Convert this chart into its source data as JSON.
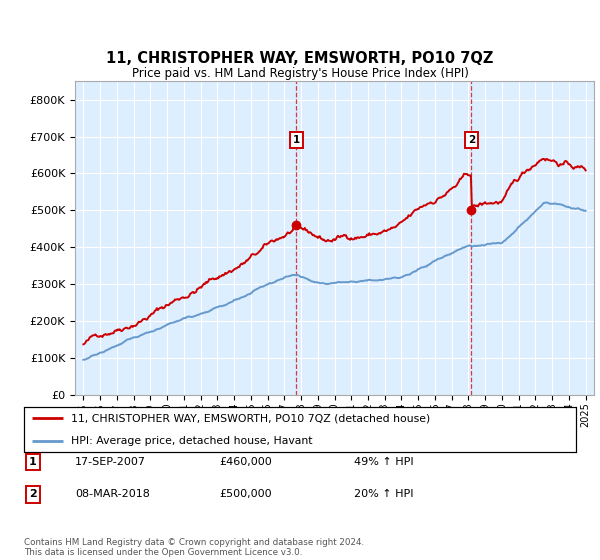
{
  "title": "11, CHRISTOPHER WAY, EMSWORTH, PO10 7QZ",
  "subtitle": "Price paid vs. HM Land Registry's House Price Index (HPI)",
  "legend_line1": "11, CHRISTOPHER WAY, EMSWORTH, PO10 7QZ (detached house)",
  "legend_line2": "HPI: Average price, detached house, Havant",
  "annotation1_label": "1",
  "annotation1_date": "17-SEP-2007",
  "annotation1_price": "£460,000",
  "annotation1_hpi": "49% ↑ HPI",
  "annotation2_label": "2",
  "annotation2_date": "08-MAR-2018",
  "annotation2_price": "£500,000",
  "annotation2_hpi": "20% ↑ HPI",
  "footer": "Contains HM Land Registry data © Crown copyright and database right 2024.\nThis data is licensed under the Open Government Licence v3.0.",
  "red_color": "#cc0000",
  "blue_color": "#6699cc",
  "background_color": "#ddeeff",
  "ylim": [
    0,
    850000
  ],
  "yticks": [
    0,
    100000,
    200000,
    300000,
    400000,
    500000,
    600000,
    700000,
    800000
  ],
  "sale1_year": 2007.72,
  "sale1_price": 460000,
  "sale2_year": 2018.18,
  "sale2_price": 500000
}
